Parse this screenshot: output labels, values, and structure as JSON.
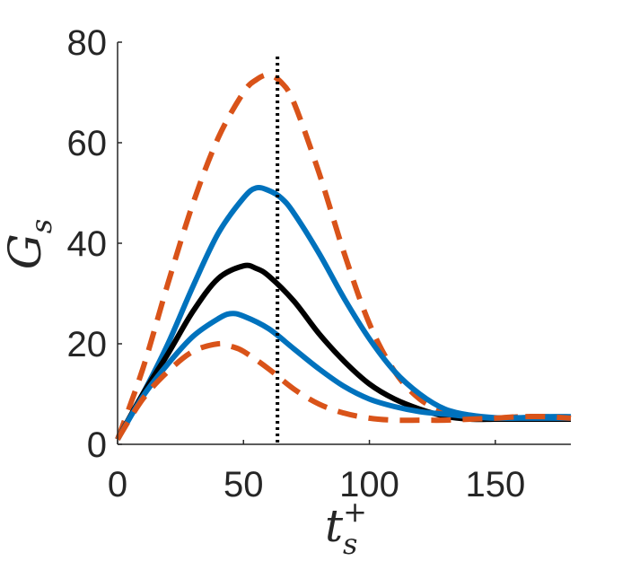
{
  "chart_data": {
    "type": "line",
    "title": "",
    "xlabel": "t_s^+",
    "ylabel": "G_s",
    "xlabel_parts": {
      "base": "t",
      "sub": "s",
      "sup": "+"
    },
    "ylabel_parts": {
      "base": "G",
      "sub": "s"
    },
    "xlim": [
      0,
      180
    ],
    "ylim": [
      0,
      80
    ],
    "xticks": [
      0,
      50,
      100,
      150
    ],
    "yticks": [
      0,
      20,
      40,
      60,
      80
    ],
    "grid": false,
    "legend": "none",
    "reference_line": {
      "x": 63.5,
      "style": "dotted",
      "color": "#000000"
    },
    "series": [
      {
        "color": "#D95319",
        "style": "dashed",
        "x": [
          0,
          10,
          20,
          30,
          40,
          50,
          55,
          60,
          65,
          70,
          80,
          90,
          100,
          110,
          120,
          130,
          140,
          150,
          160,
          170,
          180
        ],
        "y": [
          1,
          15,
          32,
          48,
          61,
          70,
          72.5,
          73.5,
          72,
          68,
          54,
          38,
          24,
          14.5,
          9,
          6.5,
          5.5,
          5.2,
          5.5,
          5.5,
          5.2
        ]
      },
      {
        "color": "#0072BD",
        "style": "solid",
        "x": [
          0,
          10,
          20,
          30,
          40,
          50,
          55,
          60,
          65,
          70,
          80,
          90,
          100,
          110,
          120,
          130,
          140,
          150,
          160,
          170,
          180
        ],
        "y": [
          1,
          10,
          20,
          31.5,
          42,
          49,
          51,
          50.5,
          49,
          46,
          38,
          29,
          21,
          14.5,
          10,
          7,
          5.8,
          5.3,
          5.3,
          5.5,
          5.5
        ]
      },
      {
        "color": "#000000",
        "style": "solid",
        "x": [
          0,
          10,
          20,
          30,
          40,
          50,
          55,
          60,
          70,
          80,
          90,
          100,
          110,
          120,
          130,
          140,
          150,
          160,
          170,
          180
        ],
        "y": [
          1,
          10,
          18,
          26.5,
          33,
          35.5,
          35,
          33.5,
          28.5,
          22,
          16.5,
          12,
          9,
          7,
          5.6,
          5,
          5,
          5,
          5,
          5
        ]
      },
      {
        "color": "#0072BD",
        "style": "solid",
        "x": [
          0,
          10,
          20,
          30,
          40,
          45,
          50,
          60,
          70,
          80,
          90,
          100,
          110,
          120,
          130,
          140,
          150,
          160,
          170,
          180
        ],
        "y": [
          1,
          9.5,
          16,
          21.5,
          25,
          26,
          25.5,
          23,
          19,
          15,
          11.5,
          9,
          7.5,
          6.5,
          6,
          5.5,
          5.2,
          5.2,
          5.2,
          5.2
        ]
      },
      {
        "color": "#D95319",
        "style": "dashed",
        "x": [
          0,
          10,
          20,
          30,
          40,
          45,
          50,
          60,
          70,
          80,
          90,
          100,
          110,
          120,
          130,
          140,
          150,
          160,
          170,
          180
        ],
        "y": [
          1,
          9,
          14.5,
          18.5,
          20,
          19.5,
          18.5,
          15,
          11,
          8,
          6.2,
          5.2,
          4.8,
          4.8,
          4.8,
          5,
          5.2,
          5.5,
          5.5,
          5.2
        ]
      }
    ]
  }
}
